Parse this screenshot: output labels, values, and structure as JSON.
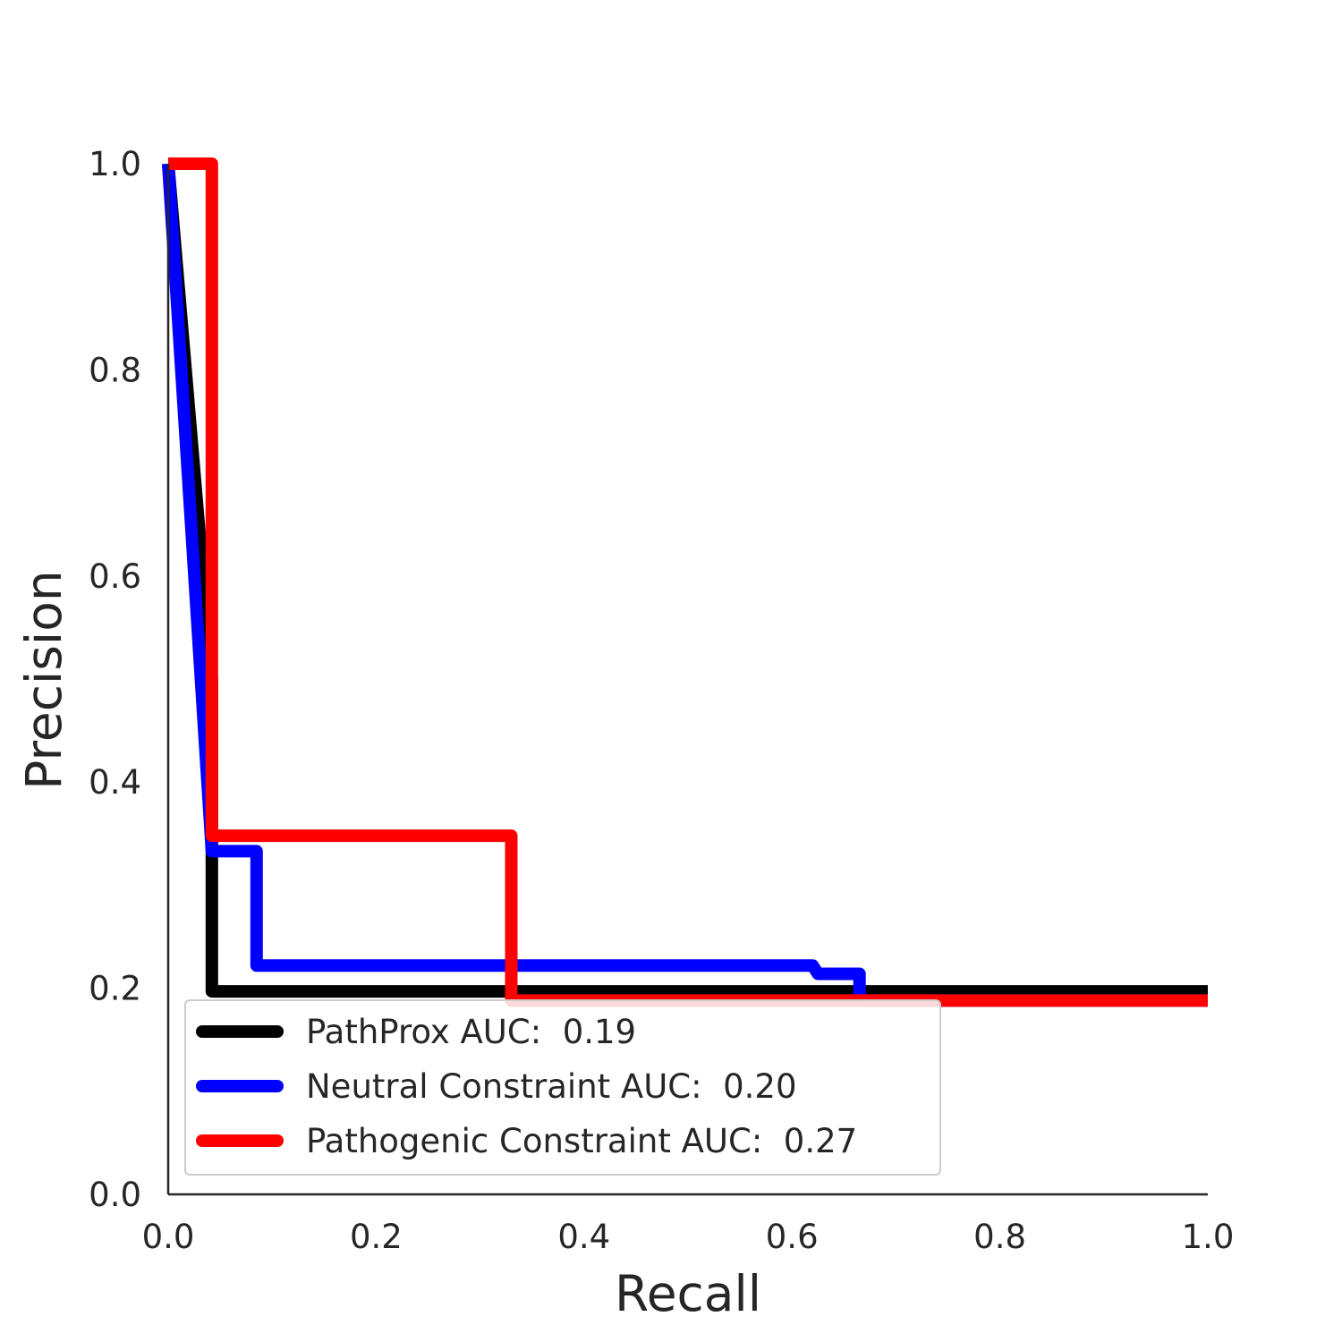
{
  "chart_data": {
    "type": "line",
    "xlabel": "Recall",
    "ylabel": "Precision",
    "xlim": [
      0.0,
      1.0
    ],
    "ylim": [
      0.0,
      1.0
    ],
    "xticks": [
      "0.0",
      "0.2",
      "0.4",
      "0.6",
      "0.8",
      "1.0"
    ],
    "yticks": [
      "0.0",
      "0.2",
      "0.4",
      "0.6",
      "0.8",
      "1.0"
    ],
    "grid": false,
    "legend_position": "lower-center",
    "series": [
      {
        "name": "PathProx AUC:  0.19",
        "color": "#000000",
        "x": [
          0.0,
          0.042,
          0.042,
          1.0
        ],
        "y": [
          1.0,
          0.5,
          0.197,
          0.197
        ]
      },
      {
        "name": "Neutral Constraint AUC:  0.20",
        "color": "#0000ff",
        "x": [
          0.0,
          0.042,
          0.085,
          0.085,
          0.62,
          0.625,
          0.665,
          0.665,
          1.0
        ],
        "y": [
          1.0,
          0.333,
          0.333,
          0.222,
          0.222,
          0.214,
          0.214,
          0.188,
          0.188
        ]
      },
      {
        "name": "Pathogenic Constraint AUC:  0.27",
        "color": "#ff0000",
        "x": [
          0.0,
          0.042,
          0.042,
          0.33,
          0.33,
          1.0
        ],
        "y": [
          1.0,
          1.0,
          0.348,
          0.348,
          0.188,
          0.188
        ]
      }
    ]
  }
}
